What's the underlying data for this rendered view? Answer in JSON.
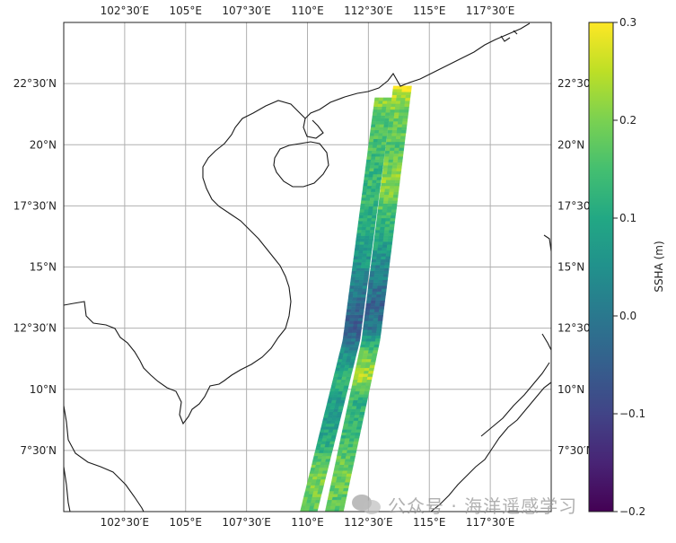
{
  "map": {
    "lon_range": [
      100.0,
      120.0
    ],
    "lat_range": [
      5.0,
      25.0
    ],
    "x_ticks": [
      {
        "value": 102.5,
        "label": "102°30′E"
      },
      {
        "value": 105.0,
        "label": "105°E"
      },
      {
        "value": 107.5,
        "label": "107°30′E"
      },
      {
        "value": 110.0,
        "label": "110°E"
      },
      {
        "value": 112.5,
        "label": "112°30′E"
      },
      {
        "value": 115.0,
        "label": "115°E"
      },
      {
        "value": 117.5,
        "label": "117°30′E"
      }
    ],
    "y_ticks": [
      {
        "value": 22.5,
        "label": "22°30′N"
      },
      {
        "value": 20.0,
        "label": "20°N"
      },
      {
        "value": 17.5,
        "label": "17°30′N"
      },
      {
        "value": 15.0,
        "label": "15°N"
      },
      {
        "value": 12.5,
        "label": "12°30′N"
      },
      {
        "value": 10.0,
        "label": "10°N"
      },
      {
        "value": 7.5,
        "label": "7°30′N"
      }
    ],
    "coastline_color": "#1a1a1a",
    "grid_color": "#b0b0b0"
  },
  "chart_data": {
    "type": "heatmap",
    "variable": "SSHA",
    "colormap": "viridis",
    "tracks": [
      {
        "name": "swath_left",
        "centerline": [
          [
            110.05,
            5.0
          ],
          [
            111.8,
            12.0
          ],
          [
            113.1,
            21.8
          ]
        ],
        "width_deg": 0.7,
        "ssha_profile": [
          [
            5.0,
            0.18
          ],
          [
            6.5,
            0.2
          ],
          [
            8.0,
            0.1
          ],
          [
            9.5,
            0.08
          ],
          [
            10.5,
            0.12
          ],
          [
            11.5,
            0.05
          ],
          [
            12.5,
            -0.06
          ],
          [
            13.5,
            -0.02
          ],
          [
            15.0,
            0.06
          ],
          [
            17.0,
            0.12
          ],
          [
            19.0,
            0.14
          ],
          [
            21.0,
            0.16
          ],
          [
            21.8,
            0.22
          ]
        ]
      },
      {
        "name": "swath_right",
        "centerline": [
          [
            111.1,
            5.0
          ],
          [
            112.6,
            12.0
          ],
          [
            113.9,
            22.4
          ]
        ],
        "width_deg": 0.75,
        "ssha_profile": [
          [
            5.0,
            0.16
          ],
          [
            6.5,
            0.2
          ],
          [
            8.0,
            0.14
          ],
          [
            9.5,
            0.12
          ],
          [
            10.5,
            0.24
          ],
          [
            11.5,
            0.18
          ],
          [
            12.5,
            0.0
          ],
          [
            13.5,
            -0.04
          ],
          [
            15.0,
            0.04
          ],
          [
            17.0,
            0.14
          ],
          [
            18.5,
            0.22
          ],
          [
            20.0,
            0.16
          ],
          [
            21.5,
            0.2
          ],
          [
            22.4,
            0.28
          ]
        ]
      }
    ],
    "colorbar": {
      "label": "SSHA (m)",
      "vmin": -0.2,
      "vmax": 0.3,
      "ticks": [
        {
          "value": 0.3,
          "label": "0.3"
        },
        {
          "value": 0.2,
          "label": "0.2"
        },
        {
          "value": 0.1,
          "label": "0.1"
        },
        {
          "value": 0.0,
          "label": "0.0"
        },
        {
          "value": -0.1,
          "label": "−0.1"
        },
        {
          "value": -0.2,
          "label": "−0.2"
        }
      ]
    }
  },
  "watermark": {
    "text": "公众号 · 海洋遥感学习",
    "icon": "wechat-icon"
  }
}
